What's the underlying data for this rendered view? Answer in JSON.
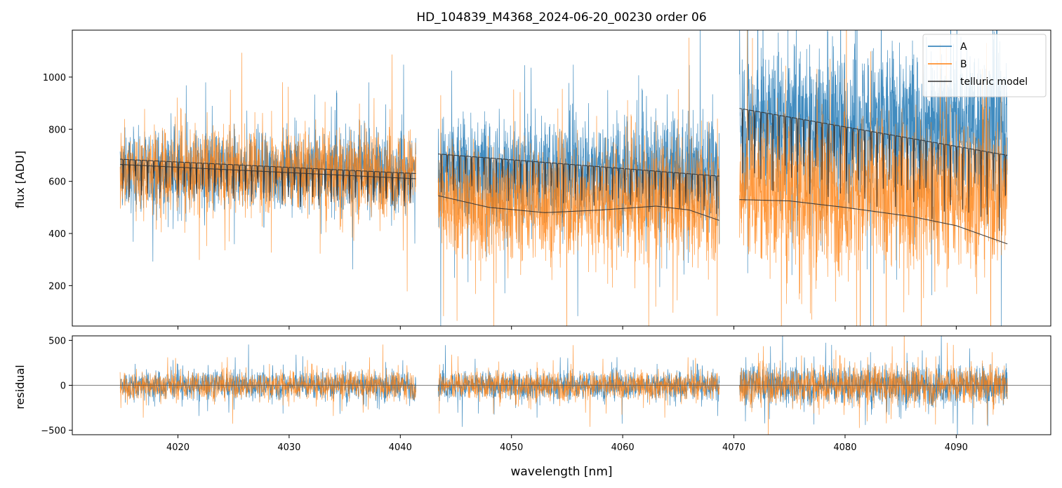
{
  "chart_data": [
    {
      "type": "line",
      "panel": "main",
      "title": "HD_104839_M4368_2024-06-20_00230  order 06",
      "xlabel": "",
      "ylabel": "flux [ADU]",
      "xlim": [
        4010.5,
        4098.5
      ],
      "ylim": [
        45,
        1180
      ],
      "yticks": [
        200,
        400,
        600,
        800,
        1000
      ],
      "xticks": [
        4020,
        4030,
        4040,
        4050,
        4060,
        4070,
        4080,
        4090
      ],
      "legend": {
        "position": "top-right",
        "entries": [
          "A",
          "B",
          "telluric model"
        ]
      },
      "segments": [
        {
          "x": [
            4014.8,
            4041.4
          ],
          "A_mean": 640,
          "A_spread": 210,
          "B_mean": 640,
          "B_spread": 230
        },
        {
          "x": [
            4043.4,
            4068.7
          ],
          "A_mean": 640,
          "A_spread": 300,
          "B_mean": 520,
          "B_spread": 320
        },
        {
          "x": [
            4070.5,
            4094.6
          ],
          "A_mean": 820,
          "A_spread": 420,
          "B_mean": 560,
          "B_spread": 420
        }
      ],
      "series": [
        {
          "name": "A",
          "color": "#1f77b4",
          "kind": "noisy-spectrum"
        },
        {
          "name": "B",
          "color": "#ff7f0e",
          "kind": "noisy-spectrum"
        },
        {
          "name": "telluric model",
          "color": "#333333",
          "curves": [
            {
              "x": [
                4014.8,
                4041.4
              ],
              "y": [
                685,
                630
              ],
              "line_depth": 130
            },
            {
              "x": [
                4014.8,
                4041.4
              ],
              "y": [
                665,
                610
              ],
              "line_depth": 130
            },
            {
              "x": [
                4043.4,
                4068.7
              ],
              "y": [
                705,
                620
              ],
              "line_depth": 160
            },
            {
              "x": [
                4043.4,
                4068.7
              ],
              "y": [
                545,
                450
              ],
              "profile": [
                [
                  4043.4,
                  545
                ],
                [
                  4048,
                  500
                ],
                [
                  4053,
                  480
                ],
                [
                  4058,
                  490
                ],
                [
                  4063,
                  505
                ],
                [
                  4066,
                  490
                ],
                [
                  4068.7,
                  450
                ]
              ]
            },
            {
              "x": [
                4070.5,
                4094.6
              ],
              "y": [
                880,
                700
              ],
              "line_depth": 300
            },
            {
              "x": [
                4070.5,
                4094.6
              ],
              "y": [
                530,
                360
              ],
              "profile": [
                [
                  4070.5,
                  530
                ],
                [
                  4075,
                  525
                ],
                [
                  4080,
                  500
                ],
                [
                  4086,
                  465
                ],
                [
                  4090,
                  430
                ],
                [
                  4094.6,
                  360
                ]
              ]
            }
          ]
        }
      ]
    },
    {
      "type": "line",
      "panel": "residual",
      "xlabel": "wavelength [nm]",
      "ylabel": "residual",
      "xlim": [
        4010.5,
        4098.5
      ],
      "ylim": [
        -550,
        550
      ],
      "yticks": [
        -500,
        0,
        500
      ],
      "xticks": [
        4020,
        4030,
        4040,
        4050,
        4060,
        4070,
        4080,
        4090
      ],
      "zero_line": true,
      "segments": [
        {
          "x": [
            4014.8,
            4041.4
          ],
          "spread": 230
        },
        {
          "x": [
            4043.4,
            4068.7
          ],
          "spread": 230
        },
        {
          "x": [
            4070.5,
            4094.6
          ],
          "spread": 320
        }
      ],
      "series": [
        {
          "name": "A",
          "color": "#1f77b4"
        },
        {
          "name": "B",
          "color": "#ff7f0e"
        }
      ]
    }
  ]
}
